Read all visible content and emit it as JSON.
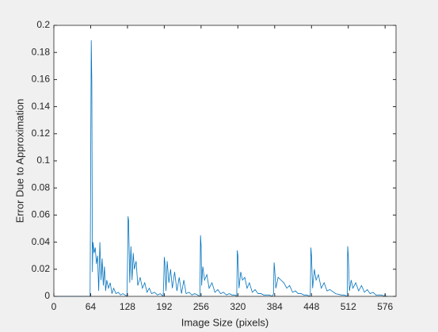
{
  "chart_data": {
    "type": "line",
    "xlabel": "Image Size (pixels)",
    "ylabel": "Error Due to Approximation",
    "x": [
      0,
      63,
      64,
      65,
      66,
      67,
      68,
      70,
      72,
      74,
      76,
      78,
      80,
      82,
      84,
      86,
      88,
      90,
      92,
      95,
      98,
      101,
      104,
      108,
      112,
      116,
      120,
      124,
      127,
      128,
      129,
      130,
      132,
      134,
      136,
      138,
      140,
      143,
      146,
      150,
      154,
      158,
      162,
      166,
      170,
      175,
      180,
      185,
      190,
      191,
      192,
      193,
      195,
      197,
      200,
      203,
      206,
      210,
      214,
      218,
      222,
      226,
      230,
      235,
      240,
      245,
      250,
      254,
      255,
      256,
      257,
      259,
      262,
      266,
      270,
      275,
      280,
      285,
      290,
      295,
      300,
      305,
      310,
      315,
      318,
      319,
      320,
      322,
      325,
      328,
      332,
      336,
      340,
      345,
      350,
      355,
      360,
      365,
      370,
      375,
      380,
      382,
      383,
      384,
      386,
      390,
      395,
      400,
      405,
      410,
      415,
      420,
      425,
      430,
      435,
      440,
      445,
      446,
      447,
      448,
      450,
      453,
      456,
      460,
      465,
      470,
      475,
      480,
      490,
      500,
      505,
      510,
      511,
      512,
      514,
      517,
      520,
      525,
      530,
      535,
      540,
      545,
      550,
      555,
      560,
      570,
      575,
      576,
      577,
      580
    ],
    "series": [
      {
        "color": "#0072bd",
        "values": [
          0,
          0,
          0.092,
          0.189,
          0.158,
          0.018,
          0.04,
          0.032,
          0.036,
          0.024,
          0.03,
          0.004,
          0.04,
          0.012,
          0.028,
          0.008,
          0.022,
          0.004,
          0.012,
          0.006,
          0.01,
          0.002,
          0.006,
          0.002,
          0.003,
          0.001,
          0.002,
          0.001,
          0,
          0.02,
          0.059,
          0.056,
          0.01,
          0.037,
          0.012,
          0.032,
          0.02,
          0.026,
          0.008,
          0.014,
          0.006,
          0.01,
          0.003,
          0.006,
          0.002,
          0.003,
          0.001,
          0.002,
          0,
          0.01,
          0.029,
          0.025,
          0.004,
          0.026,
          0.01,
          0.02,
          0.006,
          0.018,
          0.004,
          0.014,
          0.002,
          0.012,
          0.002,
          0.003,
          0.001,
          0.002,
          0.001,
          0,
          0.045,
          0.038,
          0.008,
          0.022,
          0.012,
          0.016,
          0.006,
          0.01,
          0.003,
          0.005,
          0.002,
          0.003,
          0.001,
          0.002,
          0.001,
          0.001,
          0,
          0.034,
          0.03,
          0.006,
          0.018,
          0.012,
          0.014,
          0.006,
          0.01,
          0.003,
          0.005,
          0.002,
          0.002,
          0.001,
          0.001,
          0.001,
          0,
          0.002,
          0.025,
          0.02,
          0.006,
          0.014,
          0.012,
          0.01,
          0.006,
          0.008,
          0.003,
          0.004,
          0.002,
          0.002,
          0.001,
          0.001,
          0,
          0.002,
          0.036,
          0.03,
          0.006,
          0.02,
          0.012,
          0.016,
          0.006,
          0.01,
          0.004,
          0.005,
          0.002,
          0.001,
          0.001,
          0,
          0.037,
          0.03,
          0.004,
          0.012,
          0.006,
          0.01,
          0.004,
          0.008,
          0.003,
          0.005,
          0.002,
          0.003,
          0.001,
          0.001,
          0,
          0.002,
          0,
          0
        ]
      }
    ],
    "xlim": [
      0,
      595
    ],
    "xticks": [
      0,
      64,
      128,
      192,
      256,
      320,
      384,
      448,
      512,
      576
    ],
    "ylim": [
      0,
      0.2
    ],
    "yticks": [
      0,
      0.02,
      0.04,
      0.06,
      0.08,
      0.1,
      0.12,
      0.14,
      0.16,
      0.18,
      0.2
    ]
  }
}
